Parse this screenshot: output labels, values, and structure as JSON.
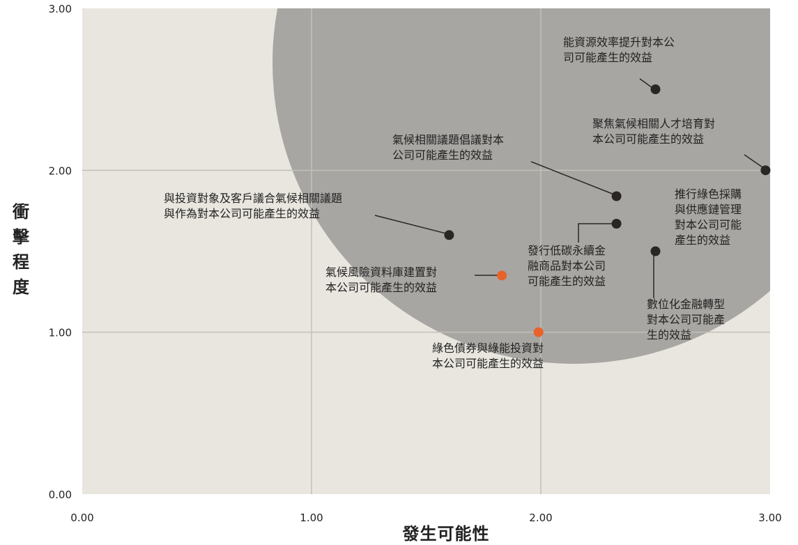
{
  "chart_data": {
    "type": "scatter",
    "xlabel": "發生可能性",
    "ylabel": "衝擊程度",
    "xlim": [
      0,
      3
    ],
    "ylim": [
      0,
      3
    ],
    "xticks": [
      "0.00",
      "1.00",
      "2.00",
      "3.00"
    ],
    "yticks": [
      "0.00",
      "1.00",
      "2.00",
      "3.00"
    ],
    "grid": true,
    "background_color": "#e9e6df",
    "highlight_region_color": "#a8a6a2",
    "series": [
      {
        "color": "#2a2624",
        "points": [
          {
            "x": 2.5,
            "y": 2.5,
            "label": [
              "能資源效率提升對本公",
              "司可能產生的效益"
            ]
          },
          {
            "x": 2.98,
            "y": 2.0,
            "label": [
              "聚焦氣候相關人才培育對",
              "本公司可能產生的效益"
            ]
          },
          {
            "x": 2.33,
            "y": 1.84,
            "label": [
              "氣候相關議題倡議對本",
              "公司可能產生的效益"
            ]
          },
          {
            "x": 1.6,
            "y": 1.6,
            "label": [
              "與投資對象及客戶議合氣候相關議題",
              "與作為對本公司可能產生的效益"
            ]
          },
          {
            "x": 2.33,
            "y": 1.67,
            "label": [
              "發行低碳永續金",
              "融商品對本公司",
              "可能產生的效益"
            ]
          },
          {
            "x": 2.5,
            "y": 1.5,
            "label": [
              "數位化金融轉型",
              "對本公司可能產",
              "生的效益"
            ]
          },
          {
            "x": 2.98,
            "y": 2.0,
            "label": [
              "推行綠色採購",
              "與供應鏈管理",
              "對本公司可能",
              "產生的效益"
            ]
          }
        ]
      },
      {
        "color": "#e8622a",
        "points": [
          {
            "x": 1.83,
            "y": 1.35,
            "label": [
              "氣候風險資料庫建置對",
              "本公司可能產生的效益"
            ]
          },
          {
            "x": 1.99,
            "y": 1.0,
            "label": [
              "綠色債券與綠能投資對",
              "本公司可能產生的效益"
            ]
          }
        ]
      }
    ]
  }
}
